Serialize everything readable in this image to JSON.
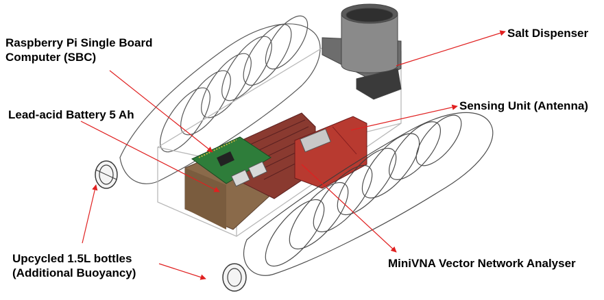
{
  "labels": {
    "sbc": [
      "Raspberry Pi Single Board",
      "Computer (SBC)"
    ],
    "battery": "Lead-acid Battery 5 Ah",
    "bottles": [
      "Upcycled 1.5L bottles",
      "(Additional Buoyancy)"
    ],
    "salt": "Salt Dispenser",
    "sensing": "Sensing Unit (Antenna)",
    "vna": "MiniVNA Vector Network Analyser"
  },
  "colors": {
    "arrow": "#e02020",
    "bottle_line": "#3a3a3a",
    "box_edge": "#b8b8b8",
    "battery": "#8a6a4a",
    "pcb": "#2e7d3a",
    "vna": "#8a3a30",
    "sensing": "#b83a30",
    "dispenser": "#6d6d6d"
  }
}
